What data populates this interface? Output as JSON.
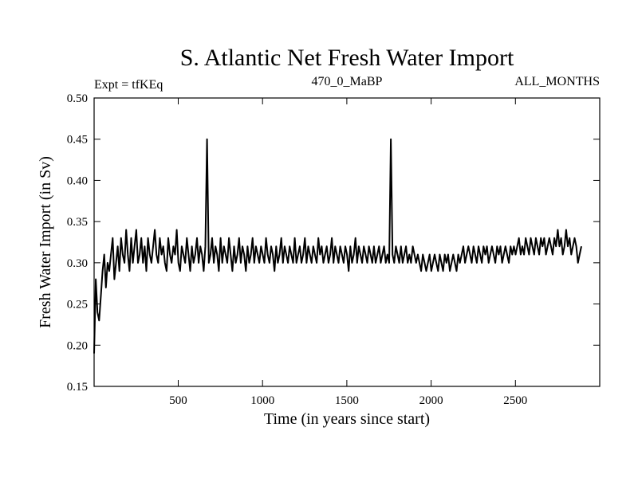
{
  "chart_data": {
    "type": "line",
    "title": "S. Atlantic Net Fresh Water Import",
    "subtitle_left": "Expt = tfKEq",
    "subtitle_center": "470_0_MaBP",
    "subtitle_right": "ALL_MONTHS",
    "xlabel": "Time (in years since start)",
    "ylabel": "Fresh Water Import (in Sv)",
    "xlim": [
      1,
      3000
    ],
    "ylim": [
      0.15,
      0.5
    ],
    "x_ticks": [
      500,
      1000,
      1500,
      2000,
      2500
    ],
    "x_tick_labels": [
      "500",
      "1000",
      "1500",
      "2000",
      "2500"
    ],
    "y_ticks": [
      0.15,
      0.2,
      0.25,
      0.3,
      0.35,
      0.4,
      0.45,
      0.5
    ],
    "y_tick_labels": [
      "0.15",
      "0.20",
      "0.25",
      "0.30",
      "0.35",
      "0.40",
      "0.45",
      "0.50"
    ],
    "grid": false,
    "line_color": "#000000",
    "series": [
      {
        "x_start": 1,
        "x_step": 10,
        "values": [
          0.19,
          0.28,
          0.24,
          0.23,
          0.26,
          0.29,
          0.31,
          0.27,
          0.3,
          0.29,
          0.31,
          0.33,
          0.28,
          0.3,
          0.32,
          0.29,
          0.33,
          0.31,
          0.3,
          0.34,
          0.31,
          0.29,
          0.33,
          0.3,
          0.32,
          0.34,
          0.3,
          0.31,
          0.33,
          0.3,
          0.32,
          0.29,
          0.33,
          0.31,
          0.3,
          0.32,
          0.34,
          0.31,
          0.3,
          0.33,
          0.31,
          0.32,
          0.3,
          0.29,
          0.33,
          0.31,
          0.3,
          0.32,
          0.31,
          0.34,
          0.3,
          0.29,
          0.32,
          0.31,
          0.3,
          0.33,
          0.31,
          0.29,
          0.32,
          0.3,
          0.31,
          0.33,
          0.3,
          0.32,
          0.31,
          0.29,
          0.32,
          0.45,
          0.3,
          0.31,
          0.33,
          0.3,
          0.32,
          0.31,
          0.29,
          0.33,
          0.3,
          0.32,
          0.31,
          0.3,
          0.33,
          0.31,
          0.29,
          0.32,
          0.3,
          0.31,
          0.33,
          0.3,
          0.32,
          0.31,
          0.29,
          0.32,
          0.3,
          0.31,
          0.33,
          0.3,
          0.32,
          0.31,
          0.3,
          0.32,
          0.31,
          0.3,
          0.33,
          0.31,
          0.3,
          0.32,
          0.31,
          0.29,
          0.32,
          0.3,
          0.31,
          0.33,
          0.3,
          0.32,
          0.31,
          0.3,
          0.32,
          0.31,
          0.3,
          0.33,
          0.3,
          0.31,
          0.32,
          0.3,
          0.31,
          0.33,
          0.3,
          0.32,
          0.31,
          0.3,
          0.32,
          0.31,
          0.3,
          0.33,
          0.31,
          0.32,
          0.3,
          0.31,
          0.32,
          0.3,
          0.31,
          0.33,
          0.3,
          0.32,
          0.31,
          0.3,
          0.32,
          0.31,
          0.3,
          0.32,
          0.31,
          0.29,
          0.32,
          0.3,
          0.31,
          0.33,
          0.3,
          0.32,
          0.31,
          0.3,
          0.32,
          0.31,
          0.3,
          0.32,
          0.31,
          0.3,
          0.32,
          0.3,
          0.31,
          0.32,
          0.3,
          0.31,
          0.32,
          0.3,
          0.31,
          0.3,
          0.45,
          0.31,
          0.3,
          0.32,
          0.31,
          0.3,
          0.32,
          0.3,
          0.31,
          0.32,
          0.3,
          0.31,
          0.3,
          0.32,
          0.31,
          0.3,
          0.31,
          0.3,
          0.29,
          0.31,
          0.3,
          0.29,
          0.3,
          0.31,
          0.29,
          0.3,
          0.31,
          0.3,
          0.29,
          0.31,
          0.3,
          0.29,
          0.31,
          0.3,
          0.31,
          0.29,
          0.3,
          0.31,
          0.3,
          0.29,
          0.31,
          0.3,
          0.31,
          0.32,
          0.3,
          0.31,
          0.32,
          0.31,
          0.3,
          0.32,
          0.31,
          0.3,
          0.32,
          0.31,
          0.3,
          0.32,
          0.31,
          0.32,
          0.3,
          0.31,
          0.32,
          0.31,
          0.3,
          0.32,
          0.31,
          0.32,
          0.3,
          0.31,
          0.32,
          0.31,
          0.3,
          0.32,
          0.31,
          0.32,
          0.31,
          0.32,
          0.33,
          0.31,
          0.32,
          0.31,
          0.33,
          0.32,
          0.31,
          0.33,
          0.32,
          0.31,
          0.33,
          0.32,
          0.31,
          0.33,
          0.32,
          0.33,
          0.31,
          0.32,
          0.33,
          0.32,
          0.31,
          0.33,
          0.32,
          0.34,
          0.32,
          0.33,
          0.31,
          0.32,
          0.34,
          0.32,
          0.33,
          0.31,
          0.32,
          0.33,
          0.32,
          0.3,
          0.31,
          0.32
        ]
      }
    ]
  }
}
